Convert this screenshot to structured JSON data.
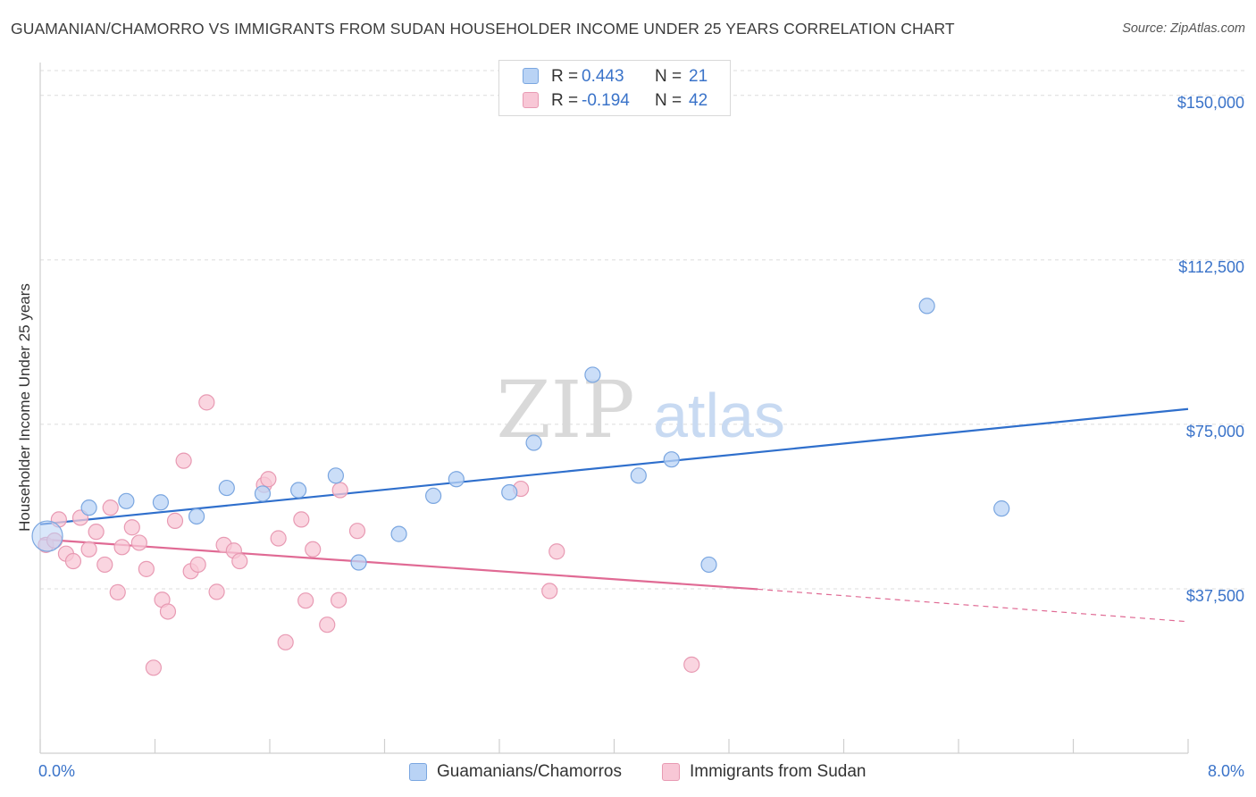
{
  "header": {
    "title": "GUAMANIAN/CHAMORRO VS IMMIGRANTS FROM SUDAN HOUSEHOLDER INCOME UNDER 25 YEARS CORRELATION CHART",
    "source": "Source: ZipAtlas.com"
  },
  "watermark": {
    "zip": "ZIP",
    "atlas": "atlas"
  },
  "legend_stats": {
    "rows": [
      {
        "r_label": "R =",
        "r_value": "0.443",
        "n_label": "N =",
        "n_value": "21"
      },
      {
        "r_label": "R =",
        "r_value": "-0.194",
        "n_label": "N =",
        "n_value": "42"
      }
    ]
  },
  "colors": {
    "blue_fill": "#b9d3f5",
    "blue_stroke": "#7aa6e0",
    "blue_line": "#2f6fcc",
    "pink_fill": "#f8c7d6",
    "pink_stroke": "#e89ab3",
    "pink_line": "#e06a94",
    "accent_text": "#3a73c9",
    "grid": "#dcdcdc"
  },
  "chart_data": {
    "type": "scatter",
    "title": "GUAMANIAN/CHAMORRO VS IMMIGRANTS FROM SUDAN HOUSEHOLDER INCOME UNDER 25 YEARS CORRELATION CHART",
    "xlabel": "",
    "ylabel": "Householder Income Under 25 years",
    "xlim": [
      0,
      8.0
    ],
    "ylim": [
      0,
      157500
    ],
    "x_tick_labels": [
      "0.0%",
      "8.0%"
    ],
    "y_ticks": [
      37500,
      75000,
      112500,
      150000
    ],
    "y_tick_labels": [
      "$37,500",
      "$75,000",
      "$112,500",
      "$150,000"
    ],
    "grid": "horizontal dashed",
    "legend_position": "bottom",
    "series": [
      {
        "name": "Guamanians/Chamorros",
        "color": "#b9d3f5",
        "points": [
          [
            0.05,
            49500
          ],
          [
            0.34,
            56000
          ],
          [
            0.6,
            57500
          ],
          [
            0.84,
            57200
          ],
          [
            1.09,
            54000
          ],
          [
            1.3,
            60500
          ],
          [
            1.55,
            59200
          ],
          [
            1.8,
            60000
          ],
          [
            2.06,
            63300
          ],
          [
            2.22,
            43500
          ],
          [
            2.5,
            50000
          ],
          [
            2.74,
            58700
          ],
          [
            2.9,
            62500
          ],
          [
            3.27,
            59500
          ],
          [
            3.44,
            70800
          ],
          [
            3.85,
            86300
          ],
          [
            4.17,
            63300
          ],
          [
            4.4,
            67000
          ],
          [
            4.66,
            43000
          ],
          [
            6.18,
            102000
          ],
          [
            6.7,
            55800
          ]
        ],
        "trend": {
          "x": [
            0.0,
            8.0
          ],
          "y": [
            52200,
            78500
          ],
          "style": "solid"
        }
      },
      {
        "name": "Immigrants from Sudan",
        "color": "#f8c7d6",
        "points": [
          [
            0.04,
            47500
          ],
          [
            0.1,
            48500
          ],
          [
            0.13,
            53300
          ],
          [
            0.18,
            45500
          ],
          [
            0.23,
            43800
          ],
          [
            0.28,
            53700
          ],
          [
            0.34,
            46500
          ],
          [
            0.39,
            50500
          ],
          [
            0.45,
            43000
          ],
          [
            0.49,
            56000
          ],
          [
            0.54,
            36700
          ],
          [
            0.57,
            47000
          ],
          [
            0.64,
            51500
          ],
          [
            0.69,
            48000
          ],
          [
            0.74,
            42000
          ],
          [
            0.79,
            19500
          ],
          [
            0.85,
            35000
          ],
          [
            0.89,
            32300
          ],
          [
            0.94,
            53000
          ],
          [
            1.0,
            66700
          ],
          [
            1.05,
            41500
          ],
          [
            1.1,
            43000
          ],
          [
            1.16,
            80000
          ],
          [
            1.23,
            36800
          ],
          [
            1.28,
            47500
          ],
          [
            1.35,
            46200
          ],
          [
            1.39,
            43800
          ],
          [
            1.56,
            61200
          ],
          [
            1.59,
            62500
          ],
          [
            1.66,
            49000
          ],
          [
            1.71,
            25300
          ],
          [
            1.82,
            53300
          ],
          [
            1.85,
            34800
          ],
          [
            1.9,
            46500
          ],
          [
            2.0,
            29300
          ],
          [
            2.08,
            34900
          ],
          [
            2.09,
            60000
          ],
          [
            2.21,
            50700
          ],
          [
            3.35,
            60300
          ],
          [
            3.55,
            37000
          ],
          [
            3.6,
            46000
          ],
          [
            4.54,
            20200
          ]
        ],
        "trend": {
          "x": [
            0.0,
            5.0
          ],
          "y": [
            48800,
            37400
          ],
          "style": "solid"
        },
        "trend_extension": {
          "x": [
            5.0,
            8.0
          ],
          "y": [
            37400,
            30000
          ],
          "style": "dashed"
        }
      }
    ]
  }
}
